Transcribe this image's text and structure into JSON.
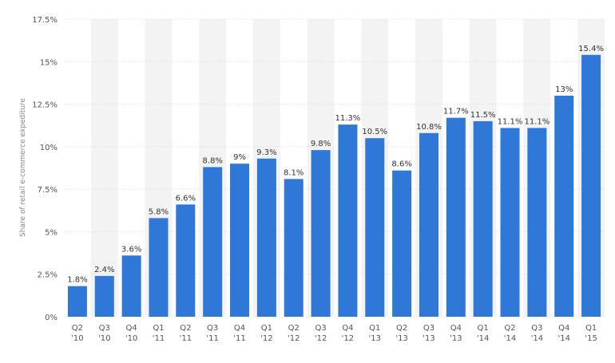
{
  "chart_data": {
    "type": "bar",
    "categories": [
      [
        "Q2",
        "'10"
      ],
      [
        "Q3",
        "'10"
      ],
      [
        "Q4",
        "'10"
      ],
      [
        "Q1",
        "'11"
      ],
      [
        "Q2",
        "'11"
      ],
      [
        "Q3",
        "'11"
      ],
      [
        "Q4",
        "'11"
      ],
      [
        "Q1",
        "'12"
      ],
      [
        "Q2",
        "'12"
      ],
      [
        "Q3",
        "'12"
      ],
      [
        "Q4",
        "'12"
      ],
      [
        "Q1",
        "'13"
      ],
      [
        "Q2",
        "'13"
      ],
      [
        "Q3",
        "'13"
      ],
      [
        "Q4",
        "'13"
      ],
      [
        "Q1",
        "'14"
      ],
      [
        "Q2",
        "'14"
      ],
      [
        "Q3",
        "'14"
      ],
      [
        "Q4",
        "'14"
      ],
      [
        "Q1",
        "'15"
      ]
    ],
    "values": [
      1.8,
      2.4,
      3.6,
      5.8,
      6.6,
      8.8,
      9,
      9.3,
      8.1,
      9.8,
      11.3,
      10.5,
      8.6,
      10.8,
      11.7,
      11.5,
      11.1,
      11.1,
      13,
      15.4
    ],
    "value_labels": [
      "1.8%",
      "2.4%",
      "3.6%",
      "5.8%",
      "6.6%",
      "8.8%",
      "9%",
      "9.3%",
      "8.1%",
      "9.8%",
      "11.3%",
      "10.5%",
      "8.6%",
      "10.8%",
      "11.7%",
      "11.5%",
      "11.1%",
      "11.1%",
      "13%",
      "15.4%"
    ],
    "ylabel": "Share of retail e-commerce expediture",
    "ylim": [
      0,
      17.5
    ],
    "yticks": [
      0,
      2.5,
      5,
      7.5,
      10,
      12.5,
      15,
      17.5
    ],
    "ytick_labels": [
      "0%",
      "2.5%",
      "5%",
      "7.5%",
      "10%",
      "12.5%",
      "15%",
      "17.5%"
    ],
    "bar_color": "#2f78d8",
    "band_color": "#f3f3f3",
    "grid": true
  }
}
